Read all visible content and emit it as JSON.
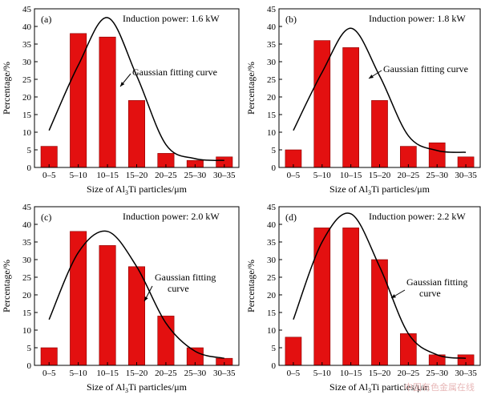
{
  "figure": {
    "watermark": "中国有色金属在线"
  },
  "chart_data": [
    {
      "type": "bar",
      "panel_label": "(a)",
      "power_label": "Induction power: 1.6 kW",
      "fit_label_lines": [
        "Gaussian fitting curve"
      ],
      "categories": [
        "0–5",
        "5–10",
        "10–15",
        "15–20",
        "20–25",
        "25–30",
        "30–35"
      ],
      "values": [
        6,
        38,
        37,
        19,
        4,
        2,
        3
      ],
      "fit_curve": [
        10.5,
        29,
        42.5,
        26,
        6.5,
        2.5,
        2
      ],
      "ylabel": "Percentage/%",
      "xlabel": {
        "pre": "Size of Al",
        "sub": "3",
        "post": "Ti particles/μm"
      },
      "ylim": [
        0,
        45
      ],
      "yticks": [
        0,
        5,
        10,
        15,
        20,
        25,
        30,
        35,
        40,
        45
      ],
      "colors": {
        "bar": "#e31010",
        "curve": "#000000"
      }
    },
    {
      "type": "bar",
      "panel_label": "(b)",
      "power_label": "Induction power: 1.8 kW",
      "fit_label_lines": [
        "Gaussian fitting curve"
      ],
      "categories": [
        "0–5",
        "5–10",
        "10–15",
        "15–20",
        "20–25",
        "25–30",
        "30–35"
      ],
      "values": [
        5,
        36,
        34,
        19,
        6,
        7,
        3
      ],
      "fit_curve": [
        10.5,
        27,
        39.5,
        26,
        9,
        4.8,
        4.3
      ],
      "ylabel": "Percentage/%",
      "xlabel": {
        "pre": "Size of Al",
        "sub": "3",
        "post": "Ti particles/μm"
      },
      "ylim": [
        0,
        45
      ],
      "yticks": [
        0,
        5,
        10,
        15,
        20,
        25,
        30,
        35,
        40,
        45
      ],
      "colors": {
        "bar": "#e31010",
        "curve": "#000000"
      }
    },
    {
      "type": "bar",
      "panel_label": "(c)",
      "power_label": "Induction power: 2.0 kW",
      "fit_label_lines": [
        "Gaussian fitting",
        "curve"
      ],
      "categories": [
        "0–5",
        "5–10",
        "10–15",
        "15–20",
        "20–25",
        "25–30",
        "30–35"
      ],
      "values": [
        5,
        38,
        34,
        28,
        14,
        5,
        2
      ],
      "fit_curve": [
        13,
        32,
        38,
        28,
        12,
        4,
        2
      ],
      "ylabel": "Percentage/%",
      "xlabel": {
        "pre": "Size of Al",
        "sub": "3",
        "post": "Ti particles/μm"
      },
      "ylim": [
        0,
        45
      ],
      "yticks": [
        0,
        5,
        10,
        15,
        20,
        25,
        30,
        35,
        40,
        45
      ],
      "colors": {
        "bar": "#e31010",
        "curve": "#000000"
      }
    },
    {
      "type": "bar",
      "panel_label": "(d)",
      "power_label": "Induction power: 2.2 kW",
      "fit_label_lines": [
        "Gaussian fitting",
        "curve"
      ],
      "categories": [
        "0–5",
        "5–10",
        "10–15",
        "15–20",
        "20–25",
        "25–30",
        "30–35"
      ],
      "values": [
        8,
        39,
        39,
        30,
        9,
        3,
        3
      ],
      "fit_curve": [
        13,
        35,
        43,
        28,
        9,
        3,
        2
      ],
      "ylabel": "Percentage/%",
      "xlabel": {
        "pre": "Size of Al",
        "sub": "3",
        "post": "Ti particles/μm"
      },
      "ylim": [
        0,
        45
      ],
      "yticks": [
        0,
        5,
        10,
        15,
        20,
        25,
        30,
        35,
        40,
        45
      ],
      "colors": {
        "bar": "#e31010",
        "curve": "#000000"
      }
    }
  ]
}
